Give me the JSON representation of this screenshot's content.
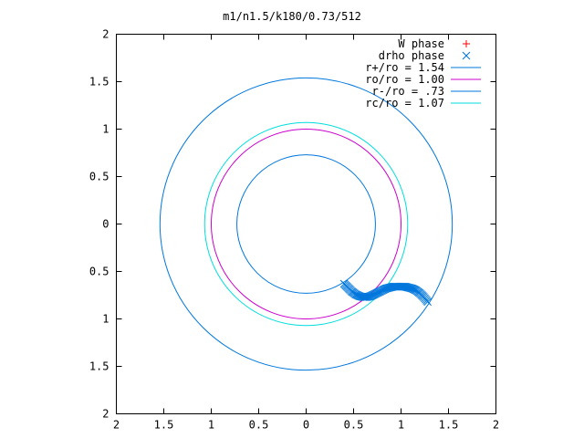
{
  "chart_data": {
    "type": "scatter",
    "title": "m1/n1.5/k180/0.73/512",
    "xlim": [
      -2,
      2
    ],
    "ylim": [
      -2,
      2
    ],
    "x_ticks": [
      -2,
      -1.5,
      -1,
      -0.5,
      0,
      0.5,
      1,
      1.5,
      2
    ],
    "y_ticks": [
      -2,
      -1.5,
      -1,
      -0.5,
      0,
      0.5,
      1,
      1.5,
      2
    ],
    "x_tick_labels": [
      "2",
      "1.5",
      "1",
      "0.5",
      "0",
      "0.5",
      "1",
      "1.5",
      "2"
    ],
    "y_tick_labels": [
      "2",
      "1.5",
      "1",
      "0.5",
      "0",
      "0.5",
      "1",
      "1.5",
      "2"
    ],
    "grid": false,
    "legend_position": "top-right",
    "legend": [
      {
        "label": "W phase",
        "symbol": "plus",
        "color": "#ff0000"
      },
      {
        "label": "drho phase",
        "symbol": "cross",
        "color": "#0077dd"
      },
      {
        "label": "r+/ro = 1.54",
        "symbol": "line",
        "color": "#0077dd"
      },
      {
        "label": "ro/ro = 1.00",
        "symbol": "line",
        "color": "#cc00cc"
      },
      {
        "label": "r-/ro = .73",
        "symbol": "line",
        "color": "#0077dd"
      },
      {
        "label": "rc/ro = 1.07",
        "symbol": "line",
        "color": "#00dddd"
      }
    ],
    "circles": [
      {
        "radius": 1.54,
        "color": "#0077dd"
      },
      {
        "radius": 1.0,
        "color": "#cc00cc"
      },
      {
        "radius": 0.73,
        "color": "#0077dd"
      },
      {
        "radius": 1.07,
        "color": "#00dddd"
      }
    ],
    "series": [
      {
        "name": "drho phase",
        "color": "#0077dd",
        "x": [
          0.4,
          0.44,
          0.48,
          0.52,
          0.56,
          0.6,
          0.64,
          0.68,
          0.72,
          0.76,
          0.8,
          0.84,
          0.88,
          0.92,
          0.96,
          1.0,
          1.04,
          1.08,
          1.12,
          1.16,
          1.2,
          1.24,
          1.28
        ],
        "y": [
          -0.63,
          -0.67,
          -0.71,
          -0.74,
          -0.76,
          -0.77,
          -0.77,
          -0.76,
          -0.74,
          -0.72,
          -0.7,
          -0.68,
          -0.67,
          -0.66,
          -0.66,
          -0.66,
          -0.66,
          -0.67,
          -0.68,
          -0.7,
          -0.73,
          -0.77,
          -0.82
        ]
      }
    ]
  }
}
